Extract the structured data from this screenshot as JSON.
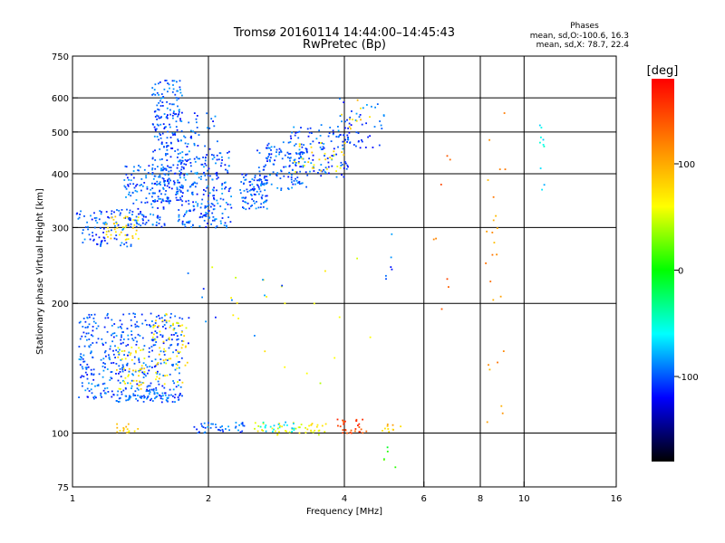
{
  "chart_data": {
    "type": "scatter",
    "title": "Tromsø 20160114 14:44:00–14:45:43",
    "subtitle": "RwPretec (Bp)",
    "xlabel": "Frequency [MHz]",
    "ylabel": "Stationary phase Virtual Height [km]",
    "x_scale": "log2",
    "y_scale": "log",
    "xlim": [
      1,
      16
    ],
    "ylim": [
      75,
      750
    ],
    "x_ticks": [
      1,
      2,
      4,
      6,
      8,
      10,
      16
    ],
    "y_ticks": [
      75,
      100,
      200,
      300,
      400,
      500,
      600,
      750
    ],
    "x_gridlines": [
      2,
      4,
      6,
      8,
      10
    ],
    "y_gridlines": [
      100,
      200,
      300,
      400,
      500,
      600
    ],
    "grid": true,
    "phase_stats": {
      "title": "Phases",
      "line1": "mean, sd,O:-100.6, 16.3",
      "line2": "mean, sd,X:  78.7, 22.4"
    },
    "colorbar": {
      "label": "[deg]",
      "range": [
        -180,
        180
      ],
      "ticks": [
        "100",
        "0",
        "-100"
      ],
      "tick_values": [
        100,
        0,
        -100
      ],
      "colors": [
        "#ff0000",
        "#ff8000",
        "#ffff00",
        "#00ff00",
        "#00ffff",
        "#0000ff",
        "#000000"
      ]
    },
    "clusters": [
      {
        "x": [
          1.02,
          1.35
        ],
        "y": [
          270,
          330
        ],
        "phase": -100,
        "n": 90
      },
      {
        "x": [
          1.18,
          1.4
        ],
        "y": [
          280,
          320
        ],
        "phase": 75,
        "n": 40
      },
      {
        "x": [
          1.3,
          1.65
        ],
        "y": [
          300,
          420
        ],
        "phase": -100,
        "n": 160
      },
      {
        "x": [
          1.5,
          1.75
        ],
        "y": [
          340,
          660
        ],
        "phase": -100,
        "n": 230
      },
      {
        "x": [
          1.7,
          2.25
        ],
        "y": [
          300,
          450
        ],
        "phase": -100,
        "n": 240
      },
      {
        "x": [
          1.7,
          2.1
        ],
        "y": [
          440,
          560
        ],
        "phase": -100,
        "n": 40
      },
      {
        "x": [
          2.35,
          2.7
        ],
        "y": [
          330,
          400
        ],
        "phase": -100,
        "n": 90
      },
      {
        "x": [
          2.55,
          3.3
        ],
        "y": [
          360,
          480
        ],
        "phase": -100,
        "n": 110
      },
      {
        "x": [
          3.0,
          4.1
        ],
        "y": [
          390,
          520
        ],
        "phase": -100,
        "n": 130
      },
      {
        "x": [
          3.1,
          4.1
        ],
        "y": [
          400,
          480
        ],
        "phase": 70,
        "n": 30
      },
      {
        "x": [
          3.9,
          4.9
        ],
        "y": [
          450,
          600
        ],
        "phase": -100,
        "n": 50
      },
      {
        "x": [
          3.9,
          4.6
        ],
        "y": [
          500,
          620
        ],
        "phase": 80,
        "n": 10
      },
      {
        "x": [
          1.03,
          1.75
        ],
        "y": [
          120,
          190
        ],
        "phase": -100,
        "n": 420
      },
      {
        "x": [
          1.25,
          1.45
        ],
        "y": [
          125,
          160
        ],
        "phase": 70,
        "n": 45
      },
      {
        "x": [
          1.5,
          1.8
        ],
        "y": [
          130,
          190
        ],
        "phase": 70,
        "n": 60
      },
      {
        "x": [
          1.25,
          1.75
        ],
        "y": [
          118,
          124
        ],
        "phase": -100,
        "n": 60
      },
      {
        "x": [
          1.25,
          1.4
        ],
        "y": [
          100,
          106
        ],
        "phase": 80,
        "n": 15
      },
      {
        "x": [
          1.85,
          2.4
        ],
        "y": [
          100,
          106
        ],
        "phase": -100,
        "n": 40
      },
      {
        "x": [
          2.5,
          3.7
        ],
        "y": [
          99,
          106
        ],
        "phase": 60,
        "n": 45
      },
      {
        "x": [
          2.6,
          3.1
        ],
        "y": [
          100,
          106
        ],
        "phase": -60,
        "n": 20
      },
      {
        "x": [
          3.85,
          4.5
        ],
        "y": [
          100,
          108
        ],
        "phase": 150,
        "n": 30
      },
      {
        "x": [
          4.8,
          5.4
        ],
        "y": [
          100,
          106
        ],
        "phase": 90,
        "n": 10
      },
      {
        "x": [
          2.0,
          4.6
        ],
        "y": [
          125,
          260
        ],
        "phase": 60,
        "n": 20
      },
      {
        "x": [
          1.8,
          3.0
        ],
        "y": [
          160,
          240
        ],
        "phase": -100,
        "n": 12
      },
      {
        "x": [
          4.9,
          5.1
        ],
        "y": [
          225,
          300
        ],
        "phase": -100,
        "n": 6
      },
      {
        "x": [
          4.8,
          5.2
        ],
        "y": [
          80,
          95
        ],
        "phase": 10,
        "n": 5
      },
      {
        "x": [
          6.3,
          6.9
        ],
        "y": [
          180,
          560
        ],
        "phase": 130,
        "n": 8
      },
      {
        "x": [
          8.2,
          9.1
        ],
        "y": [
          85,
          600
        ],
        "phase": 110,
        "n": 25
      },
      {
        "x": [
          10.8,
          11.1
        ],
        "y": [
          300,
          600
        ],
        "phase": -60,
        "n": 10
      }
    ]
  }
}
